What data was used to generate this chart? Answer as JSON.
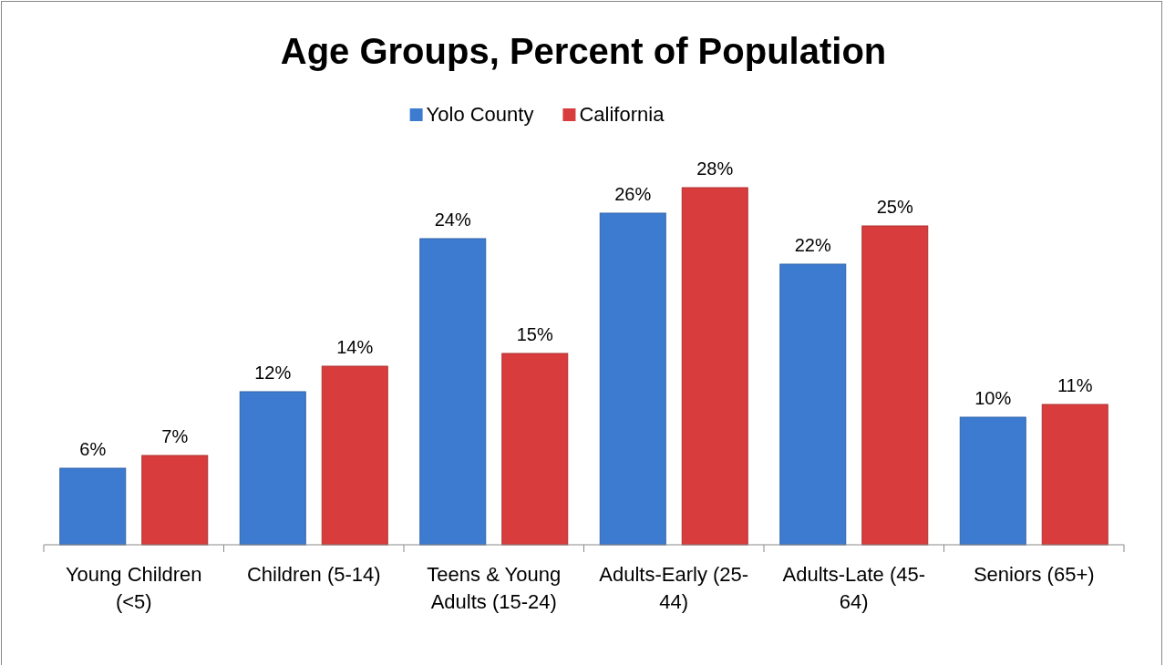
{
  "chart_data": {
    "type": "bar",
    "title": "Age Groups, Percent of Population",
    "categories": [
      "Young Children (<5)",
      "Children (5-14)",
      "Teens & Young Adults (15-24)",
      "Adults-Early (25-44)",
      "Adults-Late (45-64)",
      "Seniors (65+)"
    ],
    "series": [
      {
        "name": "Yolo County",
        "color": "#3d7bd0",
        "values": [
          6,
          12,
          24,
          26,
          22,
          10
        ],
        "value_labels": [
          "6%",
          "12%",
          "24%",
          "26%",
          "22%",
          "10%"
        ]
      },
      {
        "name": "California",
        "color": "#d83c3c",
        "values": [
          7,
          14,
          15,
          28,
          25,
          11
        ],
        "value_labels": [
          "7%",
          "14%",
          "15%",
          "28%",
          "25%",
          "11%"
        ]
      }
    ],
    "legend": "top"
  }
}
